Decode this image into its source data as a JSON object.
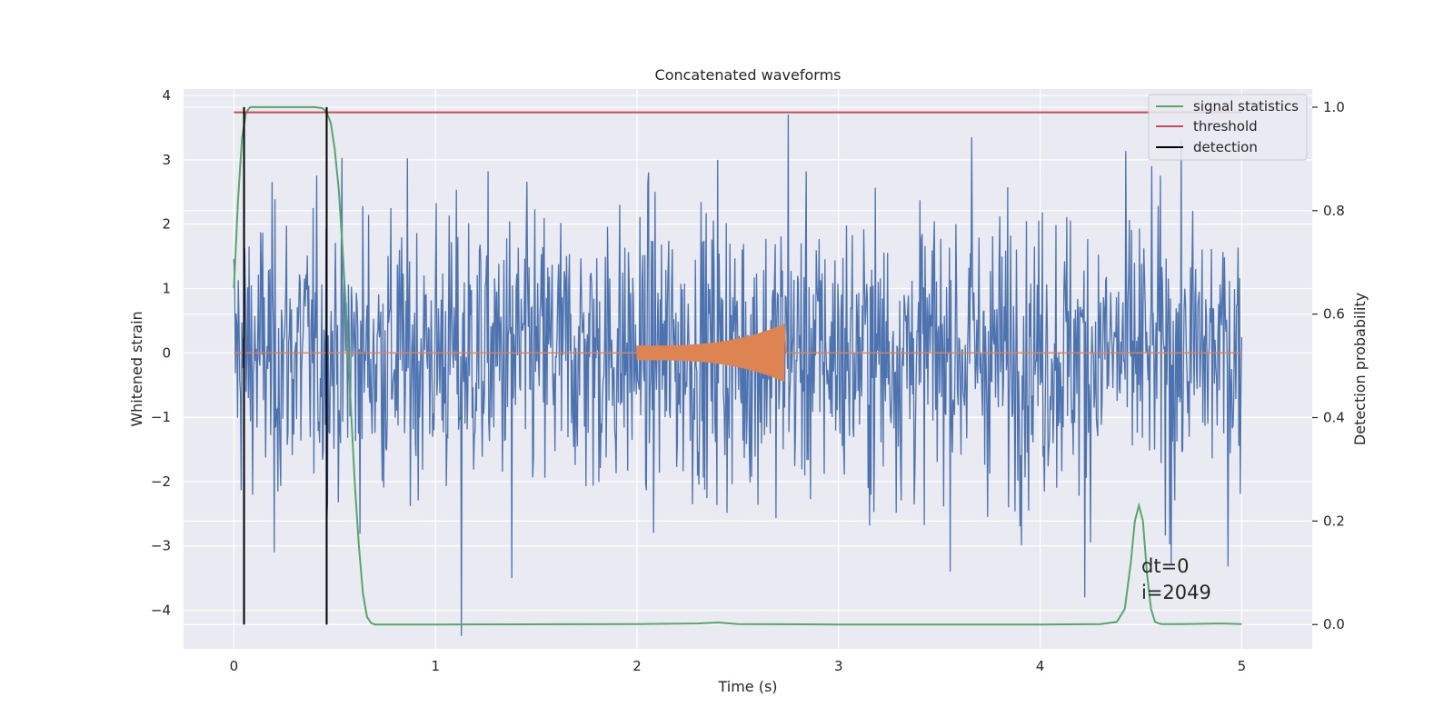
{
  "chart_data": {
    "type": "line",
    "title": "Concatenated waveforms",
    "xlabel": "Time (s)",
    "ylabel": "Whitened strain",
    "y2label": "Detection probability",
    "xlim": [
      -0.25,
      5.35
    ],
    "ylim": [
      -4.6,
      4.1
    ],
    "y2lim": [
      -0.047,
      1.035
    ],
    "x_ticks": [
      0,
      1,
      2,
      3,
      4,
      5
    ],
    "x_tick_labels": [
      "0",
      "1",
      "2",
      "3",
      "4",
      "5"
    ],
    "y_ticks": [
      4,
      3,
      2,
      1,
      0,
      -1,
      -2,
      -3,
      -4
    ],
    "y_tick_labels": [
      "4",
      "3",
      "2",
      "1",
      "0",
      "−1",
      "−2",
      "−3",
      "−4"
    ],
    "y2_ticks": [
      1.0,
      0.8,
      0.6,
      0.4,
      0.2,
      0.0
    ],
    "y2_tick_labels": [
      "1.0",
      "0.8",
      "0.6",
      "0.4",
      "0.2",
      "0.0"
    ],
    "grid": true,
    "legend_position": "top-right",
    "legend": [
      "signal statistics",
      "threshold",
      "detection"
    ],
    "annotations": [
      "dt=0",
      "i=2049"
    ],
    "colors": {
      "strain": "#4c72b0",
      "template": "#dd8452",
      "signal_statistics": "#55a868",
      "threshold": "#c44e52",
      "detection": "#000000",
      "plot_background": "#eaeaf2",
      "grid": "#ffffff"
    },
    "series": [
      {
        "axis": "left",
        "style": "noise",
        "x_range": [
          0.0,
          5.0
        ],
        "envelope_sigma": 1.1,
        "spikes": [
          [
            2.75,
            3.7
          ],
          [
            1.13,
            -4.4
          ],
          [
            1.38,
            -3.5
          ],
          [
            4.22,
            -3.8
          ],
          [
            4.65,
            -3.3
          ],
          [
            0.2,
            -3.1
          ],
          [
            3.66,
            3.35
          ],
          [
            2.4,
            3.0
          ]
        ]
      },
      {
        "axis": "left",
        "style": "chirp",
        "x_range": [
          2.0,
          2.73
        ],
        "peak_amplitude": 0.45
      },
      {
        "name": "signal statistics",
        "axis": "right",
        "x": [
          0.0,
          0.02,
          0.04,
          0.06,
          0.08,
          0.1,
          0.2,
          0.3,
          0.4,
          0.44,
          0.46,
          0.48,
          0.5,
          0.52,
          0.54,
          0.56,
          0.58,
          0.6,
          0.62,
          0.64,
          0.66,
          0.68,
          0.7,
          0.8,
          1.0,
          2.0,
          2.3,
          2.4,
          2.5,
          3.0,
          4.0,
          4.3,
          4.38,
          4.42,
          4.45,
          4.47,
          4.49,
          4.51,
          4.53,
          4.55,
          4.57,
          4.6,
          4.7,
          4.9,
          5.0
        ],
        "values": [
          0.65,
          0.82,
          0.94,
          0.99,
          1.0,
          1.0,
          1.0,
          1.0,
          1.0,
          0.998,
          0.99,
          0.97,
          0.92,
          0.84,
          0.72,
          0.58,
          0.42,
          0.27,
          0.15,
          0.06,
          0.015,
          0.003,
          0.0,
          0.0,
          0.0,
          0.001,
          0.002,
          0.004,
          0.001,
          0.0,
          0.0,
          0.001,
          0.005,
          0.03,
          0.12,
          0.2,
          0.23,
          0.2,
          0.1,
          0.03,
          0.005,
          0.001,
          0.001,
          0.002,
          0.001
        ]
      },
      {
        "name": "threshold",
        "axis": "right",
        "x": [
          0.0,
          5.0
        ],
        "values": [
          0.99,
          0.99
        ]
      },
      {
        "name": "detection",
        "axis": "right",
        "vlines": [
          0.05,
          0.46
        ],
        "range": [
          0.0,
          1.0
        ]
      }
    ]
  }
}
